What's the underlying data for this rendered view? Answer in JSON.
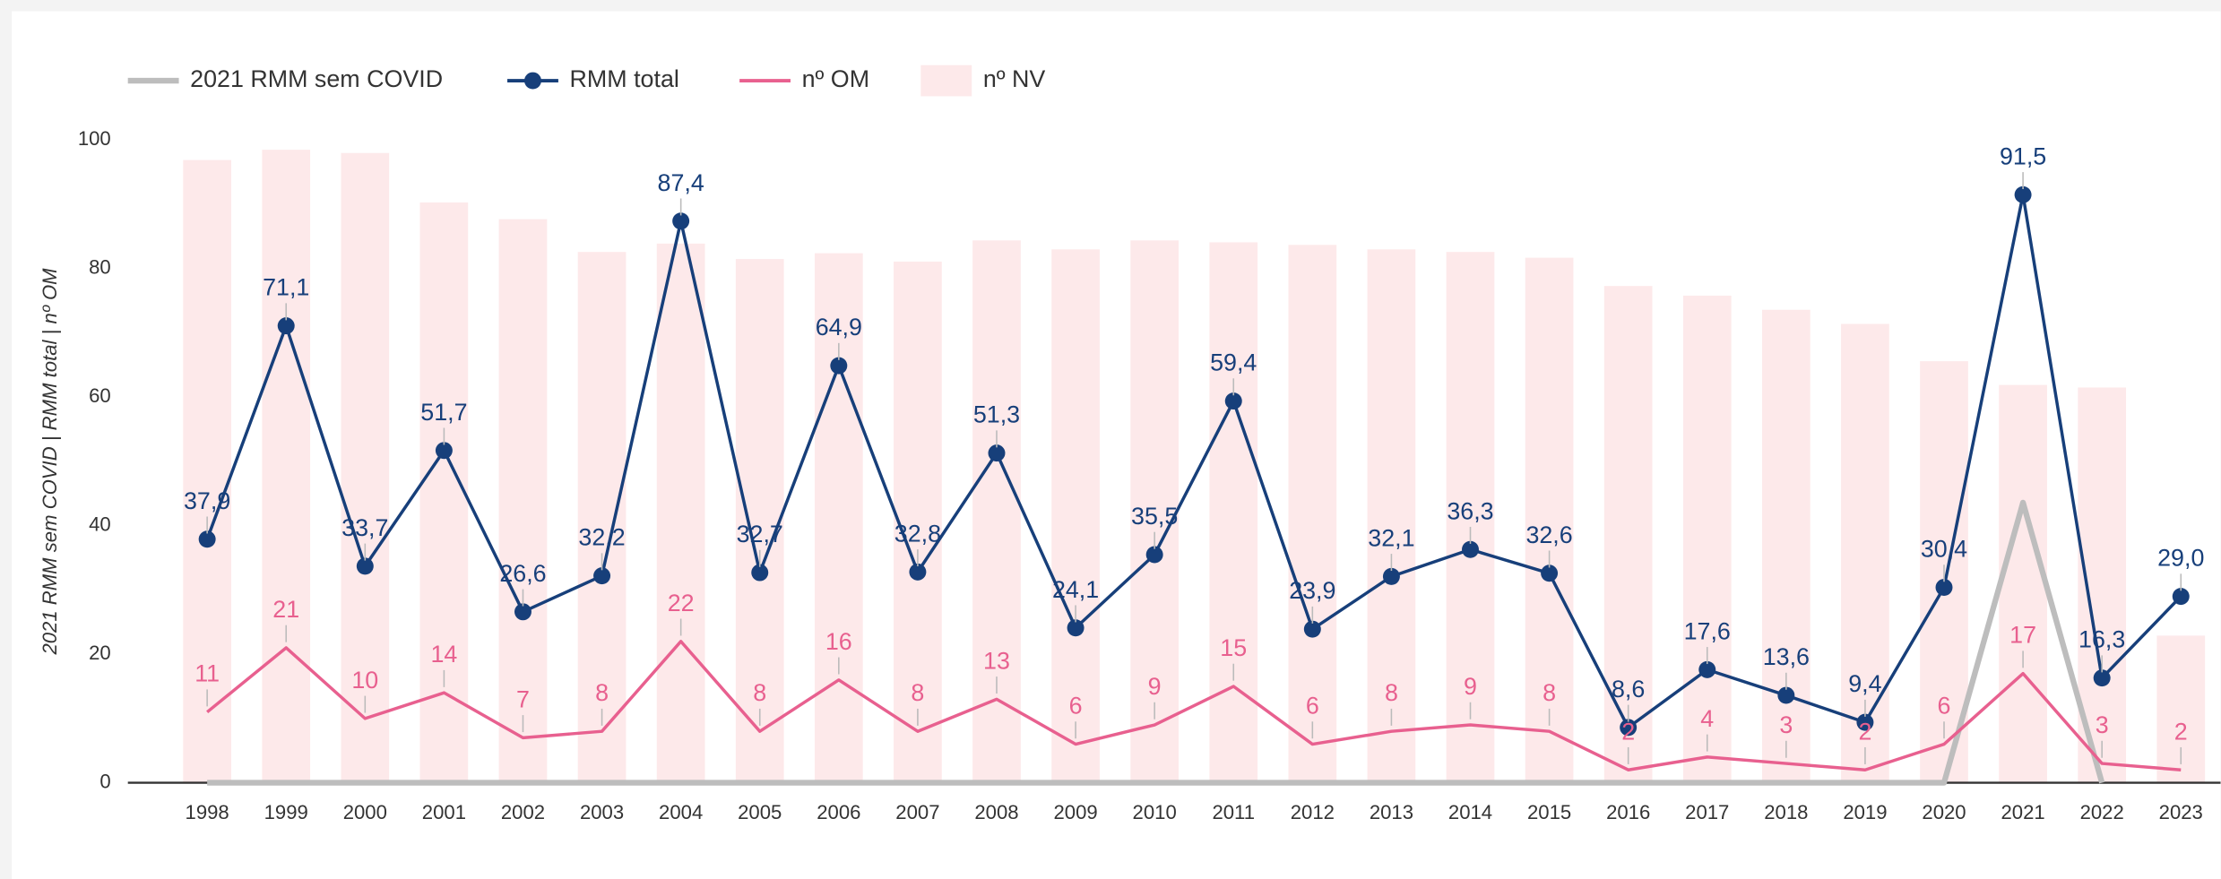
{
  "chart_data": {
    "type": "combo",
    "ylabel": "2021 RMM sem COVID | RMM total | nº OM",
    "categories": [
      "1998",
      "1999",
      "2000",
      "2001",
      "2002",
      "2003",
      "2004",
      "2005",
      "2006",
      "2007",
      "2008",
      "2009",
      "2010",
      "2011",
      "2012",
      "2013",
      "2014",
      "2015",
      "2016",
      "2017",
      "2018",
      "2019",
      "2020",
      "2021",
      "2022",
      "2023"
    ],
    "ylim": [
      0,
      100
    ],
    "yticks": [
      0,
      20,
      40,
      60,
      80,
      100
    ],
    "grid": false,
    "legend": "top-left",
    "series": [
      {
        "name": "2021 RMM sem COVID",
        "type": "line",
        "color": "#bdbdbd",
        "values": [
          0,
          0,
          0,
          0,
          0,
          0,
          0,
          0,
          0,
          0,
          0,
          0,
          0,
          0,
          0,
          0,
          0,
          0,
          0,
          0,
          0,
          0,
          0,
          43.6,
          0,
          null
        ]
      },
      {
        "name": "RMM total",
        "type": "line",
        "color": "#173f7a",
        "markers": true,
        "values": [
          37.9,
          71.1,
          33.7,
          51.7,
          26.6,
          32.2,
          87.4,
          32.7,
          64.9,
          32.8,
          51.3,
          24.1,
          35.5,
          59.4,
          23.9,
          32.1,
          36.3,
          32.6,
          8.6,
          17.6,
          13.6,
          9.4,
          30.4,
          91.5,
          16.3,
          29.0
        ],
        "value_labels": [
          "37,9",
          "71,1",
          "33,7",
          "51,7",
          "26,6",
          "32,2",
          "87,4",
          "32,7",
          "64,9",
          "32,8",
          "51,3",
          "24,1",
          "35,5",
          "59,4",
          "23,9",
          "32,1",
          "36,3",
          "32,6",
          "8,6",
          "17,6",
          "13,6",
          "9,4",
          "30,4",
          "91,5",
          "16,3",
          "29,0"
        ]
      },
      {
        "name": "nº OM",
        "type": "line",
        "color": "#e8608f",
        "show_labels": true,
        "values": [
          11,
          21,
          10,
          14,
          7,
          8,
          22,
          8,
          16,
          8,
          13,
          6,
          9,
          15,
          6,
          8,
          9,
          8,
          2,
          4,
          3,
          2,
          6,
          17,
          3,
          2
        ]
      },
      {
        "name": "nº NV",
        "type": "bar",
        "color": "#fde9ea",
        "values": [
          96.9,
          98.5,
          98.0,
          90.3,
          87.7,
          82.6,
          83.9,
          81.5,
          82.4,
          81.1,
          84.4,
          83.0,
          84.4,
          84.1,
          83.7,
          83.0,
          82.6,
          81.7,
          77.3,
          75.8,
          73.6,
          71.4,
          65.6,
          61.9,
          61.5,
          22.9
        ]
      }
    ]
  }
}
